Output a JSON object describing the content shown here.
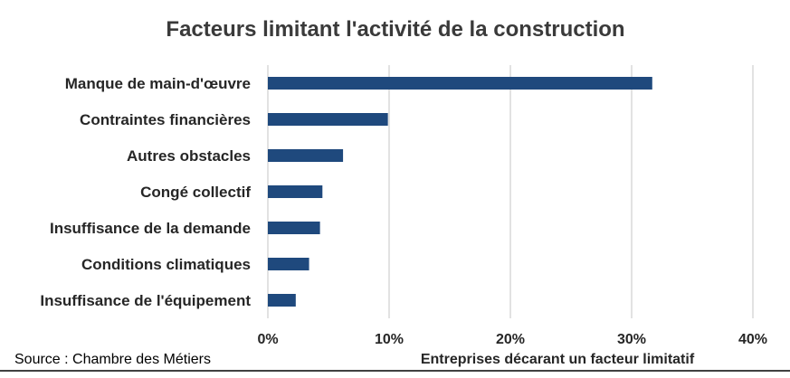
{
  "source": "Source : Chambre des Métiers",
  "colors": {
    "bar": "#1f497d",
    "grid": "#d9d9d9",
    "text": "#262626",
    "title": "#3a3a3a"
  },
  "chart_data": {
    "type": "bar",
    "orientation": "horizontal",
    "title": "Facteurs limitant l'activité de la construction",
    "xlabel": "Entreprises décarant un facteur limitatif",
    "ylabel": "",
    "categories": [
      "Manque de main-d'œuvre",
      "Contraintes financières",
      "Autres obstacles",
      "Congé collectif",
      "Insuffisance de la demande",
      "Conditions climatiques",
      "Insuffisance de l'équipement"
    ],
    "values": [
      31.7,
      9.9,
      6.2,
      4.5,
      4.3,
      3.4,
      2.3
    ],
    "xlim": [
      0,
      40
    ],
    "xticks": [
      0,
      10,
      20,
      30,
      40
    ],
    "xtick_labels": [
      "0%",
      "10%",
      "20%",
      "30%",
      "40%"
    ],
    "grid": "vertical",
    "legend": "none"
  }
}
